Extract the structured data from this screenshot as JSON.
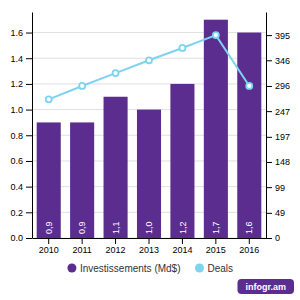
{
  "chart_data": {
    "type": "bar",
    "categories": [
      "2010",
      "2011",
      "2012",
      "2013",
      "2014",
      "2015",
      "2016"
    ],
    "series": [
      {
        "name": "Investissements (Md$)",
        "type": "bar",
        "color": "#5b2d8e",
        "values": [
          0.9,
          0.9,
          1.1,
          1.0,
          1.2,
          1.7,
          1.6
        ],
        "value_labels": [
          "0,9",
          "0,9",
          "1,1",
          "1,0",
          "1,2",
          "1,7",
          "1,6"
        ],
        "data_labels": true
      },
      {
        "name": "Deals",
        "type": "line",
        "color": "#7dd3f0",
        "axis": "y2",
        "marker": "circle",
        "values": [
          270,
          296,
          321,
          346,
          370,
          395,
          296
        ]
      }
    ],
    "ylim": [
      0,
      1.76
    ],
    "yticks": [
      {
        "value": 0,
        "label": "0.0"
      },
      0.2,
      0.4,
      0.6,
      0.8,
      {
        "value": 1.0,
        "label": "1.0"
      },
      1.2,
      1.4,
      1.6
    ],
    "y2lim": [
      0,
      440
    ],
    "y2ticks": [
      0,
      49,
      99,
      148,
      197,
      247,
      296,
      346,
      395
    ],
    "grid": true,
    "legend": "bottom",
    "annotations": [
      "infogr.am"
    ]
  }
}
